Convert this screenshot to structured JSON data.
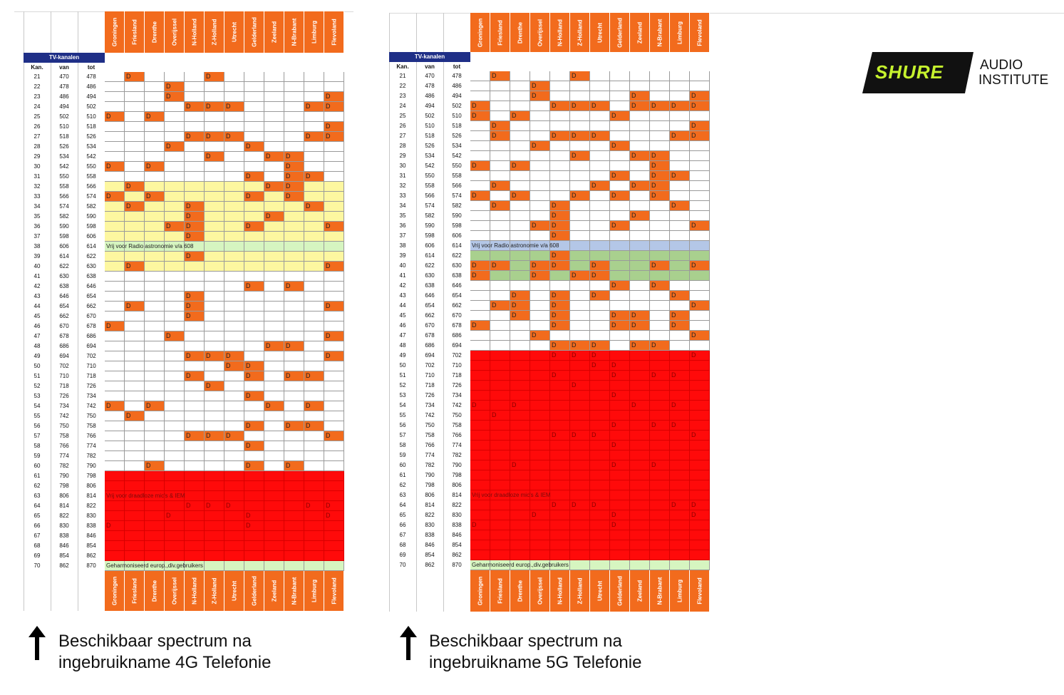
{
  "provinces": [
    "Groningen",
    "Friesland",
    "Drenthe",
    "Overijssel",
    "N-Holland",
    "Z-Holland",
    "Utrecht",
    "Gelderland",
    "Zeeland",
    "N-Brabant",
    "Limburg",
    "Flevoland"
  ],
  "table_title": "TV-kanalen",
  "col_headers": [
    "Kan.",
    "van",
    "tot"
  ],
  "d_symbol": "D",
  "colors": {
    "orange": "#f26b1d",
    "red": "#ff0a0a",
    "yellow": "#fdf7a0",
    "green": "#a9d08e",
    "blue": "#b4c7e7",
    "lightgreen": "#d6f5c0",
    "navy": "#1f2f87"
  },
  "tables": [
    {
      "id": "4g",
      "caption_line1": "Beschikbaar spectrum na",
      "caption_line2": "ingebruikname 4G Telefonie",
      "rows": [
        {
          "k": "21",
          "v": "470",
          "t": "478"
        },
        {
          "k": "22",
          "v": "478",
          "t": "486"
        },
        {
          "k": "23",
          "v": "486",
          "t": "494"
        },
        {
          "k": "24",
          "v": "494",
          "t": "502"
        },
        {
          "k": "25",
          "v": "502",
          "t": "510"
        },
        {
          "k": "26",
          "v": "510",
          "t": "518"
        },
        {
          "k": "27",
          "v": "518",
          "t": "526"
        },
        {
          "k": "28",
          "v": "526",
          "t": "534"
        },
        {
          "k": "29",
          "v": "534",
          "t": "542"
        },
        {
          "k": "30",
          "v": "542",
          "t": "550"
        },
        {
          "k": "31",
          "v": "550",
          "t": "558"
        },
        {
          "k": "32",
          "v": "558",
          "t": "566"
        },
        {
          "k": "33",
          "v": "566",
          "t": "574"
        },
        {
          "k": "34",
          "v": "574",
          "t": "582"
        },
        {
          "k": "35",
          "v": "582",
          "t": "590"
        },
        {
          "k": "36",
          "v": "590",
          "t": "598"
        },
        {
          "k": "37",
          "v": "598",
          "t": "606"
        },
        {
          "k": "38",
          "v": "606",
          "t": "614"
        },
        {
          "k": "39",
          "v": "614",
          "t": "622"
        },
        {
          "k": "40",
          "v": "622",
          "t": "630"
        },
        {
          "k": "41",
          "v": "630",
          "t": "638"
        },
        {
          "k": "42",
          "v": "638",
          "t": "646"
        },
        {
          "k": "43",
          "v": "646",
          "t": "654"
        },
        {
          "k": "44",
          "v": "654",
          "t": "662"
        },
        {
          "k": "45",
          "v": "662",
          "t": "670"
        },
        {
          "k": "46",
          "v": "670",
          "t": "678"
        },
        {
          "k": "47",
          "v": "678",
          "t": "686"
        },
        {
          "k": "48",
          "v": "686",
          "t": "694"
        },
        {
          "k": "49",
          "v": "694",
          "t": "702"
        },
        {
          "k": "50",
          "v": "702",
          "t": "710"
        },
        {
          "k": "51",
          "v": "710",
          "t": "718"
        },
        {
          "k": "52",
          "v": "718",
          "t": "726"
        },
        {
          "k": "53",
          "v": "726",
          "t": "734"
        },
        {
          "k": "54",
          "v": "734",
          "t": "742"
        },
        {
          "k": "55",
          "v": "742",
          "t": "750"
        },
        {
          "k": "56",
          "v": "750",
          "t": "758"
        },
        {
          "k": "57",
          "v": "758",
          "t": "766"
        },
        {
          "k": "58",
          "v": "766",
          "t": "774"
        },
        {
          "k": "59",
          "v": "774",
          "t": "782"
        },
        {
          "k": "60",
          "v": "782",
          "t": "790"
        },
        {
          "k": "61",
          "v": "790",
          "t": "798"
        },
        {
          "k": "62",
          "v": "798",
          "t": "806"
        },
        {
          "k": "63",
          "v": "806",
          "t": "814"
        },
        {
          "k": "64",
          "v": "814",
          "t": "822"
        },
        {
          "k": "65",
          "v": "822",
          "t": "830"
        },
        {
          "k": "66",
          "v": "830",
          "t": "838"
        },
        {
          "k": "67",
          "v": "838",
          "t": "846"
        },
        {
          "k": "68",
          "v": "846",
          "t": "854"
        },
        {
          "k": "69",
          "v": "854",
          "t": "862"
        },
        {
          "k": "70",
          "v": "862",
          "t": "870"
        }
      ],
      "d_cells": [
        "21:1",
        "21:5",
        "22:3",
        "23:3",
        "23:11",
        "24:4",
        "24:5",
        "24:6",
        "24:10",
        "24:11",
        "25:0",
        "25:2",
        "26:11",
        "27:4",
        "27:5",
        "27:6",
        "27:10",
        "27:11",
        "28:3",
        "28:7",
        "29:5",
        "29:8",
        "29:9",
        "30:0",
        "30:2",
        "30:9",
        "31:7",
        "31:9",
        "31:10",
        "32:1",
        "32:8",
        "32:9",
        "33:0",
        "33:2",
        "33:7",
        "33:9",
        "34:1",
        "34:4",
        "34:10",
        "35:4",
        "35:8",
        "36:3",
        "36:4",
        "36:7",
        "36:11",
        "37:4",
        "39:4",
        "40:1",
        "40:11",
        "42:7",
        "42:9",
        "43:4",
        "44:1",
        "44:4",
        "44:11",
        "45:4",
        "46:0",
        "47:3",
        "47:11",
        "48:8",
        "48:9",
        "49:4",
        "49:5",
        "49:6",
        "49:11",
        "50:6",
        "50:7",
        "51:4",
        "51:7",
        "51:9",
        "51:10",
        "52:5",
        "53:7",
        "54:0",
        "54:2",
        "54:8",
        "54:10",
        "55:1",
        "56:7",
        "56:9",
        "56:10",
        "57:4",
        "57:5",
        "57:6",
        "57:11",
        "58:7",
        "60:2",
        "60:7",
        "60:9",
        "64:4",
        "64:5",
        "64:6",
        "64:10",
        "64:11",
        "65:3",
        "65:7",
        "65:11",
        "66:0",
        "66:7"
      ],
      "band_rows": [
        {
          "from": "32",
          "to": "40",
          "color": "yellow"
        },
        {
          "from": "61",
          "to": "69",
          "color": "red"
        },
        {
          "from": "70",
          "to": "70",
          "color": "lightgreen"
        },
        {
          "from": "38",
          "to": "38",
          "color": "lightgreen"
        }
      ],
      "notes": [
        {
          "row": "38",
          "text": "Vrij voor Radio astronomie v/a 608",
          "style": "normal"
        },
        {
          "row": "63",
          "text": "Vrij voor draadloze mic's & IEM",
          "style": "red"
        },
        {
          "row": "70",
          "text": "Geharmoniseerd europ.,div.gebruikers",
          "style": "normal"
        }
      ]
    },
    {
      "id": "5g",
      "caption_line1": "Beschikbaar spectrum na",
      "caption_line2": "ingebruikname 5G Telefonie",
      "rows": [
        {
          "k": "21",
          "v": "470",
          "t": "478"
        },
        {
          "k": "22",
          "v": "478",
          "t": "486"
        },
        {
          "k": "23",
          "v": "486",
          "t": "494"
        },
        {
          "k": "24",
          "v": "494",
          "t": "502"
        },
        {
          "k": "25",
          "v": "502",
          "t": "510"
        },
        {
          "k": "26",
          "v": "510",
          "t": "518"
        },
        {
          "k": "27",
          "v": "518",
          "t": "526"
        },
        {
          "k": "28",
          "v": "526",
          "t": "534"
        },
        {
          "k": "29",
          "v": "534",
          "t": "542"
        },
        {
          "k": "30",
          "v": "542",
          "t": "550"
        },
        {
          "k": "31",
          "v": "550",
          "t": "558"
        },
        {
          "k": "32",
          "v": "558",
          "t": "566"
        },
        {
          "k": "33",
          "v": "566",
          "t": "574"
        },
        {
          "k": "34",
          "v": "574",
          "t": "582"
        },
        {
          "k": "35",
          "v": "582",
          "t": "590"
        },
        {
          "k": "36",
          "v": "590",
          "t": "598"
        },
        {
          "k": "37",
          "v": "598",
          "t": "606"
        },
        {
          "k": "38",
          "v": "606",
          "t": "614"
        },
        {
          "k": "39",
          "v": "614",
          "t": "622"
        },
        {
          "k": "40",
          "v": "622",
          "t": "630"
        },
        {
          "k": "41",
          "v": "630",
          "t": "638"
        },
        {
          "k": "42",
          "v": "638",
          "t": "646"
        },
        {
          "k": "43",
          "v": "646",
          "t": "654"
        },
        {
          "k": "44",
          "v": "654",
          "t": "662"
        },
        {
          "k": "45",
          "v": "662",
          "t": "670"
        },
        {
          "k": "46",
          "v": "670",
          "t": "678"
        },
        {
          "k": "47",
          "v": "678",
          "t": "686"
        },
        {
          "k": "48",
          "v": "686",
          "t": "694"
        },
        {
          "k": "49",
          "v": "694",
          "t": "702"
        },
        {
          "k": "50",
          "v": "702",
          "t": "710"
        },
        {
          "k": "51",
          "v": "710",
          "t": "718"
        },
        {
          "k": "52",
          "v": "718",
          "t": "726"
        },
        {
          "k": "53",
          "v": "726",
          "t": "734"
        },
        {
          "k": "54",
          "v": "734",
          "t": "742"
        },
        {
          "k": "55",
          "v": "742",
          "t": "750"
        },
        {
          "k": "56",
          "v": "750",
          "t": "758"
        },
        {
          "k": "57",
          "v": "758",
          "t": "766"
        },
        {
          "k": "58",
          "v": "766",
          "t": "774"
        },
        {
          "k": "59",
          "v": "774",
          "t": "782"
        },
        {
          "k": "60",
          "v": "782",
          "t": "790"
        },
        {
          "k": "61",
          "v": "790",
          "t": "798"
        },
        {
          "k": "62",
          "v": "798",
          "t": "806"
        },
        {
          "k": "63",
          "v": "806",
          "t": "814"
        },
        {
          "k": "64",
          "v": "814",
          "t": "822"
        },
        {
          "k": "65",
          "v": "822",
          "t": "830"
        },
        {
          "k": "66",
          "v": "830",
          "t": "838"
        },
        {
          "k": "67",
          "v": "838",
          "t": "846"
        },
        {
          "k": "68",
          "v": "846",
          "t": "854"
        },
        {
          "k": "69",
          "v": "854",
          "t": "862"
        },
        {
          "k": "70",
          "v": "862",
          "t": "870"
        }
      ],
      "d_cells": [
        "21:1",
        "21:5",
        "22:3",
        "23:3",
        "23:8",
        "23:11",
        "24:0",
        "24:4",
        "24:5",
        "24:6",
        "24:8",
        "24:9",
        "24:10",
        "24:11",
        "25:0",
        "25:2",
        "25:7",
        "26:1",
        "26:11",
        "27:1",
        "27:4",
        "27:5",
        "27:6",
        "27:10",
        "27:11",
        "28:3",
        "28:7",
        "29:5",
        "29:8",
        "29:9",
        "30:0",
        "30:2",
        "30:9",
        "31:7",
        "31:9",
        "31:10",
        "32:1",
        "32:6",
        "32:8",
        "32:9",
        "33:0",
        "33:2",
        "33:5",
        "33:7",
        "33:9",
        "34:1",
        "34:4",
        "34:10",
        "35:4",
        "35:8",
        "36:3",
        "36:4",
        "36:7",
        "36:11",
        "37:4",
        "39:4",
        "40:0",
        "40:1",
        "40:3",
        "40:4",
        "40:6",
        "40:9",
        "40:11",
        "41:0",
        "41:3",
        "41:5",
        "41:6",
        "42:7",
        "42:9",
        "43:2",
        "43:4",
        "43:6",
        "43:10",
        "44:1",
        "44:2",
        "44:4",
        "44:11",
        "45:2",
        "45:4",
        "45:7",
        "45:8",
        "45:10",
        "46:0",
        "46:4",
        "46:7",
        "46:8",
        "46:10",
        "47:3",
        "47:11",
        "48:4",
        "48:5",
        "48:6",
        "48:8",
        "48:9",
        "49:4",
        "49:5",
        "49:6",
        "49:11",
        "50:6",
        "50:7",
        "51:4",
        "51:7",
        "51:9",
        "51:10",
        "52:5",
        "53:7",
        "54:0",
        "54:2",
        "54:8",
        "54:10",
        "55:1",
        "56:7",
        "56:9",
        "56:10",
        "57:4",
        "57:5",
        "57:6",
        "57:11",
        "58:7",
        "60:2",
        "60:7",
        "60:9",
        "64:4",
        "64:5",
        "64:6",
        "64:10",
        "64:11",
        "65:3",
        "65:7",
        "65:11",
        "66:0",
        "66:7"
      ],
      "band_rows": [
        {
          "from": "49",
          "to": "69",
          "color": "red"
        },
        {
          "from": "39",
          "to": "41",
          "color": "green"
        },
        {
          "from": "38",
          "to": "38",
          "color": "blue"
        },
        {
          "from": "70",
          "to": "70",
          "color": "lightgreen"
        }
      ],
      "notes": [
        {
          "row": "38",
          "text": "Vrij voor Radio astronomie v/a 608",
          "style": "normal"
        },
        {
          "row": "63",
          "text": "Vrij voor draadloze mic's & IEM",
          "style": "red"
        },
        {
          "row": "70",
          "text": "Geharmoniseerd europ.,div.gebruikers",
          "style": "normal"
        }
      ]
    }
  ],
  "logo": {
    "brand": "SHURE",
    "line1": "AUDIO",
    "line2": "INSTITUTE",
    "brand_color": "#c6f22e",
    "box_color": "#111111"
  }
}
